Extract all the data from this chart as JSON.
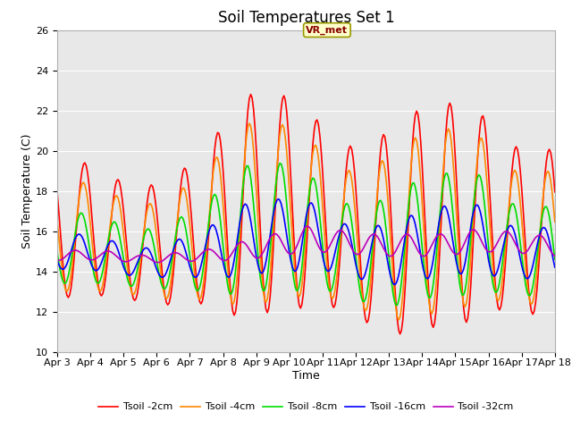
{
  "title": "Soil Temperatures Set 1",
  "xlabel": "Time",
  "ylabel": "Soil Temperature (C)",
  "ylim": [
    10,
    26
  ],
  "yticks": [
    10,
    12,
    14,
    16,
    18,
    20,
    22,
    24,
    26
  ],
  "background_color": "#e8e8e8",
  "annotation_text": "VR_met",
  "annotation_box_color": "#ffffcc",
  "annotation_box_edgecolor": "#999900",
  "legend_labels": [
    "Tsoil -2cm",
    "Tsoil -4cm",
    "Tsoil -8cm",
    "Tsoil -16cm",
    "Tsoil -32cm"
  ],
  "line_colors": [
    "#ff0000",
    "#ff8800",
    "#00dd00",
    "#0000ff",
    "#bb00bb"
  ],
  "xtick_labels": [
    "Apr 3",
    "Apr 4",
    "Apr 5",
    "Apr 6",
    "Apr 7",
    "Apr 8",
    "Apr 9",
    "Apr 10",
    "Apr 11",
    "Apr 12",
    "Apr 13",
    "Apr 14",
    "Apr 15",
    "Apr 16",
    "Apr 17",
    "Apr 18"
  ],
  "title_fontsize": 12,
  "label_fontsize": 9,
  "tick_fontsize": 8,
  "legend_fontsize": 8
}
